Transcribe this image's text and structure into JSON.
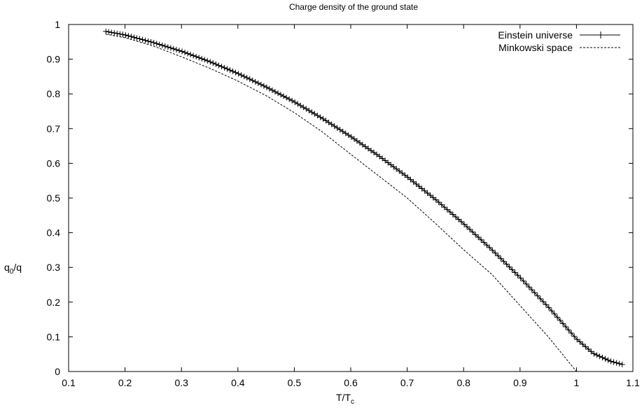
{
  "chart_data": {
    "type": "line",
    "title": "Charge density of the ground state",
    "xlabel": {
      "base": "T/T",
      "sub": "c"
    },
    "ylabel": {
      "base": "q",
      "sub": "0",
      "rest": "/q"
    },
    "xlim": [
      0.1,
      1.1
    ],
    "ylim": [
      0,
      1
    ],
    "xticks": [
      "0.1",
      "0.2",
      "0.3",
      "0.4",
      "0.5",
      "0.6",
      "0.7",
      "0.8",
      "0.9",
      "1",
      "1.1"
    ],
    "yticks": [
      "0",
      "0.1",
      "0.2",
      "0.3",
      "0.4",
      "0.5",
      "0.6",
      "0.7",
      "0.8",
      "0.9",
      "1"
    ],
    "grid": false,
    "legend_position": "top-right",
    "series": [
      {
        "name": "Einstein universe",
        "style": "solid-with-plus-markers",
        "color": "#000000",
        "x": [
          0.166,
          0.2,
          0.25,
          0.3,
          0.35,
          0.4,
          0.45,
          0.5,
          0.55,
          0.6,
          0.65,
          0.7,
          0.75,
          0.8,
          0.85,
          0.9,
          0.95,
          1.0,
          1.03,
          1.06,
          1.082
        ],
        "y": [
          0.98,
          0.97,
          0.948,
          0.923,
          0.893,
          0.859,
          0.82,
          0.777,
          0.729,
          0.677,
          0.621,
          0.561,
          0.496,
          0.426,
          0.351,
          0.271,
          0.186,
          0.094,
          0.052,
          0.03,
          0.02
        ]
      },
      {
        "name": "Minkowski space",
        "style": "dashed",
        "color": "#000000",
        "x": [
          0.166,
          0.2,
          0.25,
          0.3,
          0.35,
          0.4,
          0.45,
          0.5,
          0.55,
          0.6,
          0.65,
          0.7,
          0.75,
          0.8,
          0.85,
          0.9,
          0.95,
          1.0
        ],
        "y": [
          0.972,
          0.962,
          0.938,
          0.907,
          0.874,
          0.837,
          0.795,
          0.746,
          0.69,
          0.626,
          0.563,
          0.5,
          0.427,
          0.351,
          0.28,
          0.19,
          0.1,
          0.0
        ]
      }
    ]
  }
}
